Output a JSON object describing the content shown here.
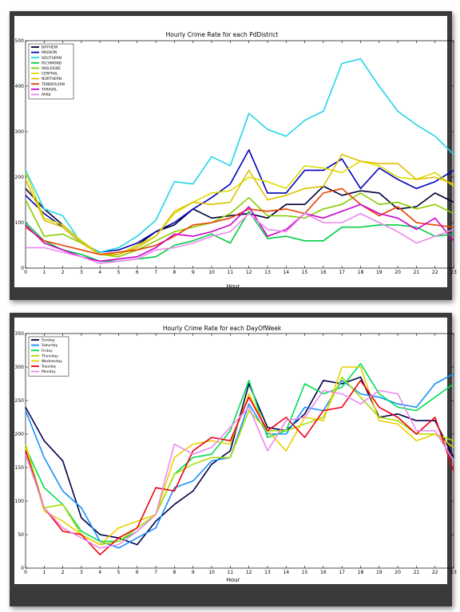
{
  "chart_data": [
    {
      "type": "line",
      "title": "Hourly Crime Rate for each PdDistrict",
      "xlabel": "Hour",
      "ylabel": "",
      "x": [
        0,
        1,
        2,
        3,
        4,
        5,
        6,
        7,
        8,
        9,
        10,
        11,
        12,
        13,
        14,
        15,
        16,
        17,
        18,
        19,
        20,
        21,
        22,
        23
      ],
      "xlim": [
        0,
        23
      ],
      "ylim": [
        0,
        500
      ],
      "yticks": [
        0,
        100,
        200,
        300,
        400,
        500
      ],
      "grid": false,
      "legend": "top-left",
      "series": [
        {
          "name": "BAYVIEW",
          "color": "#00003a",
          "values": [
            175,
            130,
            95,
            60,
            30,
            30,
            50,
            80,
            95,
            130,
            110,
            115,
            120,
            110,
            140,
            140,
            180,
            160,
            170,
            165,
            130,
            135,
            165,
            145
          ]
        },
        {
          "name": "MISSION",
          "color": "#0000b8",
          "values": [
            160,
            120,
            90,
            55,
            35,
            40,
            55,
            80,
            100,
            130,
            155,
            185,
            260,
            165,
            165,
            215,
            215,
            240,
            175,
            220,
            195,
            175,
            190,
            215
          ]
        },
        {
          "name": "SOUTHERN",
          "color": "#22d4e8",
          "values": [
            215,
            130,
            115,
            55,
            35,
            45,
            70,
            105,
            190,
            185,
            245,
            225,
            340,
            305,
            290,
            325,
            345,
            450,
            460,
            400,
            345,
            315,
            290,
            250
          ]
        },
        {
          "name": "RICHMOND",
          "color": "#00cc44",
          "values": [
            100,
            60,
            40,
            30,
            15,
            15,
            20,
            25,
            50,
            60,
            75,
            55,
            125,
            65,
            70,
            60,
            60,
            90,
            90,
            95,
            95,
            90,
            70,
            75
          ]
        },
        {
          "name": "INGLESIDE",
          "color": "#88cc00",
          "values": [
            150,
            70,
            75,
            55,
            30,
            25,
            40,
            60,
            80,
            90,
            100,
            120,
            155,
            115,
            115,
            110,
            130,
            140,
            165,
            140,
            145,
            130,
            140,
            120
          ]
        },
        {
          "name": "CENTRAL",
          "color": "#dddd00",
          "values": [
            210,
            110,
            95,
            60,
            30,
            30,
            50,
            70,
            120,
            145,
            165,
            170,
            200,
            190,
            175,
            225,
            220,
            210,
            235,
            225,
            200,
            195,
            210,
            180
          ]
        },
        {
          "name": "NORTHERN",
          "color": "#e0c000",
          "values": [
            195,
            105,
            90,
            55,
            30,
            30,
            45,
            70,
            125,
            145,
            140,
            145,
            215,
            150,
            160,
            175,
            180,
            250,
            235,
            230,
            230,
            195,
            200,
            185
          ]
        },
        {
          "name": "TENDERLOIN",
          "color": "#e84000",
          "values": [
            90,
            60,
            50,
            40,
            30,
            35,
            40,
            50,
            70,
            95,
            100,
            110,
            130,
            125,
            130,
            120,
            165,
            175,
            140,
            115,
            135,
            100,
            95,
            90
          ]
        },
        {
          "name": "TARAVAL",
          "color": "#cc00cc",
          "values": [
            95,
            55,
            40,
            25,
            15,
            20,
            25,
            45,
            75,
            70,
            80,
            95,
            135,
            70,
            85,
            120,
            110,
            125,
            140,
            120,
            110,
            85,
            110,
            60
          ]
        },
        {
          "name": "PARK",
          "color": "#ee88ee",
          "values": [
            45,
            45,
            35,
            25,
            10,
            15,
            20,
            40,
            45,
            55,
            70,
            80,
            120,
            85,
            80,
            120,
            100,
            100,
            120,
            100,
            80,
            55,
            70,
            85
          ]
        }
      ]
    },
    {
      "type": "line",
      "title": "Hourly Crime Rate for each DayOfWeek",
      "xlabel": "Hour",
      "ylabel": "",
      "x": [
        0,
        1,
        2,
        3,
        4,
        5,
        6,
        7,
        8,
        9,
        10,
        11,
        12,
        13,
        14,
        15,
        16,
        17,
        18,
        19,
        20,
        21,
        22,
        23
      ],
      "xlim": [
        0,
        23
      ],
      "ylim": [
        0,
        350
      ],
      "yticks": [
        0,
        50,
        100,
        150,
        200,
        250,
        300,
        350
      ],
      "grid": false,
      "legend": "top-left",
      "series": [
        {
          "name": "Sunday",
          "color": "#00004a",
          "values": [
            240,
            190,
            160,
            75,
            50,
            45,
            35,
            70,
            95,
            115,
            155,
            175,
            275,
            210,
            205,
            230,
            280,
            275,
            285,
            225,
            230,
            220,
            220,
            165
          ]
        },
        {
          "name": "Saturday",
          "color": "#1890ff",
          "values": [
            235,
            165,
            115,
            90,
            40,
            30,
            45,
            60,
            120,
            130,
            160,
            165,
            245,
            200,
            200,
            240,
            235,
            280,
            260,
            255,
            245,
            240,
            275,
            290
          ]
        },
        {
          "name": "Friday",
          "color": "#00dd55",
          "values": [
            180,
            120,
            95,
            55,
            40,
            40,
            55,
            80,
            140,
            165,
            170,
            205,
            280,
            195,
            205,
            275,
            260,
            270,
            305,
            260,
            240,
            235,
            255,
            275
          ]
        },
        {
          "name": "Thursday",
          "color": "#aadd00",
          "values": [
            185,
            90,
            95,
            50,
            35,
            40,
            60,
            80,
            140,
            155,
            165,
            165,
            235,
            205,
            205,
            215,
            225,
            285,
            255,
            225,
            220,
            200,
            200,
            190
          ]
        },
        {
          "name": "Wednesday",
          "color": "#e8d000",
          "values": [
            180,
            85,
            70,
            50,
            35,
            60,
            70,
            80,
            165,
            185,
            190,
            185,
            260,
            205,
            175,
            225,
            220,
            300,
            300,
            220,
            215,
            190,
            200,
            180
          ]
        },
        {
          "name": "Tuesday",
          "color": "#ee0010",
          "values": [
            175,
            90,
            55,
            50,
            20,
            45,
            60,
            120,
            115,
            175,
            195,
            190,
            255,
            205,
            225,
            195,
            235,
            240,
            280,
            240,
            225,
            200,
            225,
            145
          ]
        },
        {
          "name": "Monday",
          "color": "#ee88ee",
          "values": [
            170,
            90,
            60,
            45,
            30,
            35,
            55,
            80,
            185,
            170,
            180,
            210,
            240,
            175,
            220,
            225,
            265,
            260,
            245,
            265,
            260,
            205,
            205,
            160
          ]
        }
      ]
    }
  ]
}
